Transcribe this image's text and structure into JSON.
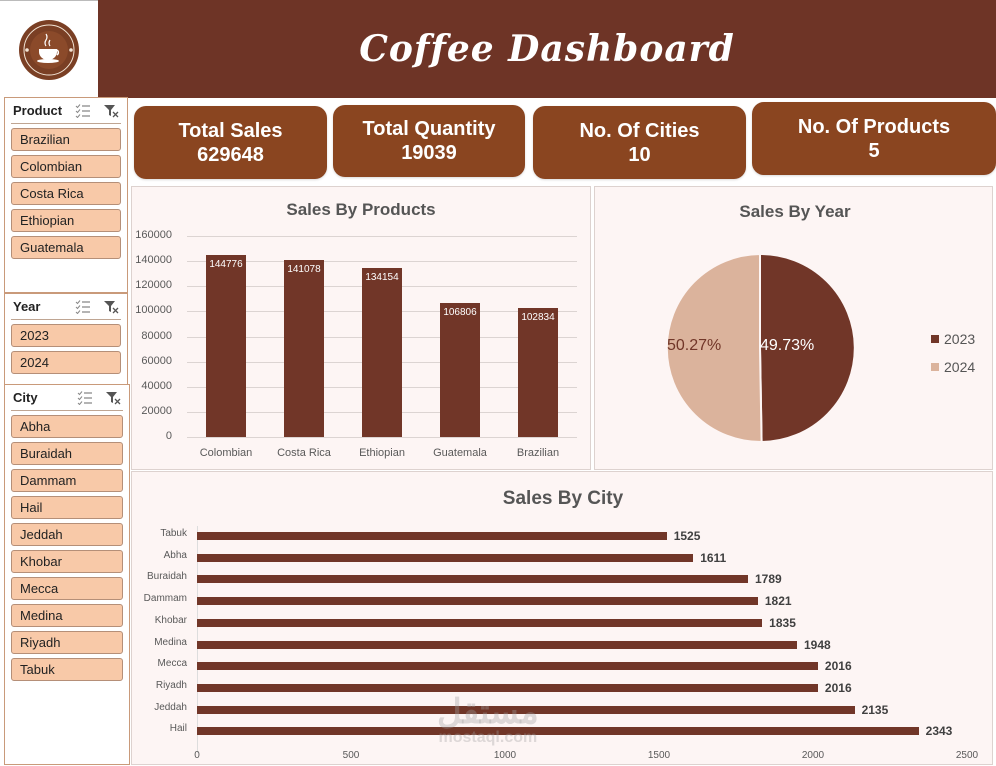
{
  "header": {
    "title": "Coffee Dashboard",
    "logo_top": "COFFEE SHOP",
    "logo_bottom": "PREMIUM QUALITY"
  },
  "kpis": [
    {
      "label": "Total Sales",
      "value": "629648"
    },
    {
      "label": "Total Quantity",
      "value": "19039"
    },
    {
      "label": "No. Of Cities",
      "value": "10"
    },
    {
      "label": "No. Of Products",
      "value": "5"
    }
  ],
  "slicers": {
    "product": {
      "title": "Product",
      "items": [
        "Brazilian",
        "Colombian",
        "Costa Rica",
        "Ethiopian",
        "Guatemala"
      ]
    },
    "year": {
      "title": "Year",
      "items": [
        "2023",
        "2024"
      ]
    },
    "city": {
      "title": "City",
      "items": [
        "Abha",
        "Buraidah",
        "Dammam",
        "Hail",
        "Jeddah",
        "Khobar",
        "Mecca",
        "Medina",
        "Riyadh",
        "Tabuk"
      ]
    }
  },
  "colors": {
    "header": "#6e3426",
    "kpi": "#8a4520",
    "bar": "#713628",
    "pie_2024": "#dbb39c",
    "chip": "#f8c9a8",
    "panel": "#fdf5f4"
  },
  "watermark": {
    "arabic": "مستقل",
    "latin": "mostaql.com"
  },
  "chart_data": [
    {
      "type": "bar",
      "title": "Sales By Products",
      "categories": [
        "Colombian",
        "Costa Rica",
        "Ethiopian",
        "Guatemala",
        "Brazilian"
      ],
      "values": [
        144776,
        141078,
        134154,
        106806,
        102834
      ],
      "value_labels": [
        "144776",
        "141078",
        "134154",
        "106806",
        "102834"
      ],
      "y_ticks": [
        "160000",
        "140000",
        "120000",
        "100000",
        "80000",
        "60000",
        "40000",
        "20000",
        "0"
      ],
      "ylim": [
        0,
        160000
      ],
      "xlabel": "",
      "ylabel": "",
      "grid": true
    },
    {
      "type": "pie",
      "title": "Sales By Year",
      "labels": [
        "2023",
        "2024"
      ],
      "values": [
        49.73,
        50.27
      ],
      "value_labels": [
        "49.73%",
        "50.27%"
      ],
      "legend": [
        "2023",
        "2024"
      ],
      "legend_position": "right"
    },
    {
      "type": "bar",
      "orientation": "horizontal",
      "title": "Sales By City",
      "categories": [
        "Tabuk",
        "Abha",
        "Buraidah",
        "Dammam",
        "Khobar",
        "Medina",
        "Mecca",
        "Riyadh",
        "Jeddah",
        "Hail"
      ],
      "values": [
        1525,
        1611,
        1789,
        1821,
        1835,
        1948,
        2016,
        2016,
        2135,
        2343
      ],
      "value_labels": [
        "1525",
        "1611",
        "1789",
        "1821",
        "1835",
        "1948",
        "2016",
        "2016",
        "2135",
        "2343"
      ],
      "x_ticks": [
        "0",
        "500",
        "1000",
        "1500",
        "2000",
        "2500"
      ],
      "xlim": [
        0,
        2500
      ],
      "grid": false
    }
  ]
}
